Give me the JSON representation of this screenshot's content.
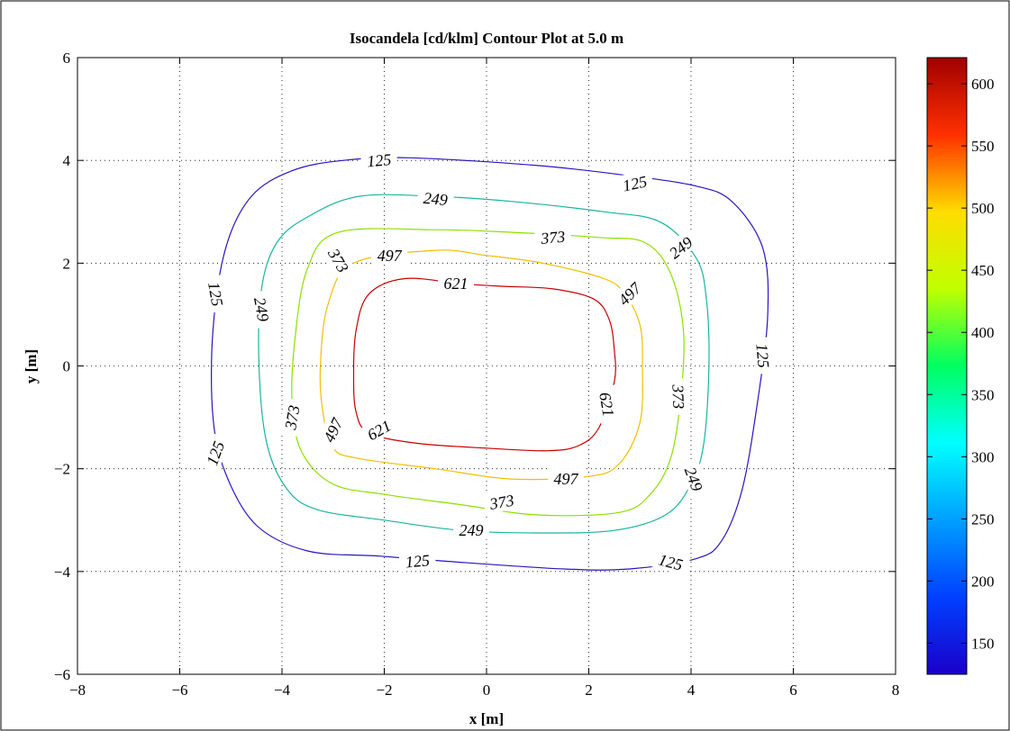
{
  "chart_data": {
    "type": "contour",
    "title": "Isocandela [cd/klm] Contour Plot at 5.0 m",
    "xlabel": "x [m]",
    "ylabel": "y [m]",
    "xlim": [
      -8,
      8
    ],
    "ylim": [
      -6,
      6
    ],
    "xticks": [
      -8,
      -6,
      -4,
      -2,
      0,
      2,
      4,
      6,
      8
    ],
    "yticks": [
      -6,
      -4,
      -2,
      0,
      2,
      4,
      6
    ],
    "xtick_labels": [
      "−8",
      "−6",
      "−4",
      "−2",
      "0",
      "2",
      "4",
      "6",
      "8"
    ],
    "ytick_labels": [
      "−6",
      "−4",
      "−2",
      "0",
      "2",
      "4",
      "6"
    ],
    "grid": true,
    "colorbar": {
      "colormap": "jet",
      "min": 125,
      "max": 621,
      "ticks": [
        150,
        200,
        250,
        300,
        350,
        400,
        450,
        500,
        550,
        600
      ],
      "tick_labels": [
        "150",
        "200",
        "250",
        "300",
        "350",
        "400",
        "450",
        "500",
        "550",
        "600"
      ]
    },
    "contours": [
      {
        "level": 125,
        "label_text": "125",
        "color": "#2a14c0",
        "points": [
          [
            -2.8,
            4
          ],
          [
            -3.8,
            3.8
          ],
          [
            -4.6,
            3.3
          ],
          [
            -5.1,
            2.3
          ],
          [
            -5.35,
            0.7
          ],
          [
            -5.35,
            -1
          ],
          [
            -5.1,
            -2.1
          ],
          [
            -4.5,
            -3.1
          ],
          [
            -3.5,
            -3.6
          ],
          [
            -2.1,
            -3.7
          ],
          [
            -0.8,
            -3.8
          ],
          [
            1.5,
            -3.95
          ],
          [
            2.8,
            -3.95
          ],
          [
            4.1,
            -3.75
          ],
          [
            4.6,
            -3.4
          ],
          [
            5.0,
            -2.4
          ],
          [
            5.3,
            -0.7
          ],
          [
            5.5,
            1.0
          ],
          [
            5.4,
            2.3
          ],
          [
            4.8,
            3.2
          ],
          [
            4.1,
            3.5
          ],
          [
            2.8,
            3.7
          ],
          [
            1.0,
            3.9
          ],
          [
            -1.5,
            4.05
          ],
          [
            -2.8,
            4
          ]
        ],
        "labels": [
          {
            "x": -2.1,
            "y": 4.0,
            "angle": 5
          },
          {
            "x": 2.9,
            "y": 3.55,
            "angle": 12
          },
          {
            "x": 5.4,
            "y": 0.2,
            "angle": -85
          },
          {
            "x": -5.3,
            "y": 1.4,
            "angle": -80
          },
          {
            "x": -5.3,
            "y": -1.7,
            "angle": 70
          },
          {
            "x": -1.35,
            "y": -3.8,
            "angle": 5
          },
          {
            "x": 3.6,
            "y": -3.82,
            "angle": -15
          }
        ]
      },
      {
        "level": 249,
        "label_text": "249",
        "color": "#1ab4a0",
        "points": [
          [
            -3.5,
            2.9
          ],
          [
            -4.1,
            2.4
          ],
          [
            -4.4,
            1.5
          ],
          [
            -4.45,
            0
          ],
          [
            -4.3,
            -1.5
          ],
          [
            -3.9,
            -2.4
          ],
          [
            -3.3,
            -2.8
          ],
          [
            -2,
            -3
          ],
          [
            -0.5,
            -3.2
          ],
          [
            1.0,
            -3.25
          ],
          [
            2.5,
            -3.2
          ],
          [
            3.5,
            -2.9
          ],
          [
            4,
            -2.3
          ],
          [
            4.25,
            -1.5
          ],
          [
            4.35,
            0
          ],
          [
            4.3,
            1.3
          ],
          [
            4.1,
            2.1
          ],
          [
            3.4,
            2.8
          ],
          [
            2.3,
            3.0
          ],
          [
            0.5,
            3.2
          ],
          [
            -1,
            3.3
          ],
          [
            -2.5,
            3.3
          ],
          [
            -3.5,
            2.9
          ]
        ],
        "labels": [
          {
            "x": -1.0,
            "y": 3.25,
            "angle": -5
          },
          {
            "x": 3.8,
            "y": 2.3,
            "angle": 38
          },
          {
            "x": 4.05,
            "y": -2.2,
            "angle": -70
          },
          {
            "x": -4.4,
            "y": 1.1,
            "angle": -80
          },
          {
            "x": -0.3,
            "y": -3.2,
            "angle": 0
          }
        ]
      },
      {
        "level": 373,
        "label_text": "373",
        "color": "#8ce000",
        "points": [
          [
            -2.9,
            2.6
          ],
          [
            -3.5,
            1.9
          ],
          [
            -3.75,
            0.5
          ],
          [
            -3.8,
            -0.8
          ],
          [
            -3.6,
            -1.7
          ],
          [
            -3.0,
            -2.3
          ],
          [
            -2,
            -2.5
          ],
          [
            -0.5,
            -2.7
          ],
          [
            1,
            -2.9
          ],
          [
            2.6,
            -2.85
          ],
          [
            3.2,
            -2.5
          ],
          [
            3.6,
            -1.8
          ],
          [
            3.8,
            -0.6
          ],
          [
            3.85,
            0.7
          ],
          [
            3.6,
            1.8
          ],
          [
            3.1,
            2.4
          ],
          [
            2.2,
            2.5
          ],
          [
            0.5,
            2.6
          ],
          [
            -1,
            2.65
          ],
          [
            -2.9,
            2.6
          ]
        ],
        "labels": [
          {
            "x": -2.9,
            "y": 2.05,
            "angle": -60
          },
          {
            "x": 1.3,
            "y": 2.5,
            "angle": 5
          },
          {
            "x": 3.75,
            "y": -0.6,
            "angle": -88
          },
          {
            "x": -3.8,
            "y": -1.0,
            "angle": 80
          },
          {
            "x": 0.3,
            "y": -2.65,
            "angle": 10
          }
        ]
      },
      {
        "level": 497,
        "label_text": "497",
        "color": "#f0c000",
        "points": [
          [
            -2.6,
            2.0
          ],
          [
            -3.1,
            1.2
          ],
          [
            -3.25,
            0
          ],
          [
            -3.2,
            -0.9
          ],
          [
            -3.0,
            -1.6
          ],
          [
            -2.5,
            -1.8
          ],
          [
            -1,
            -2.0
          ],
          [
            0.5,
            -2.2
          ],
          [
            2.0,
            -2.15
          ],
          [
            2.6,
            -1.9
          ],
          [
            3.0,
            -1.1
          ],
          [
            3.05,
            0
          ],
          [
            3.0,
            0.8
          ],
          [
            2.7,
            1.4
          ],
          [
            2.3,
            1.7
          ],
          [
            1.1,
            2.0
          ],
          [
            0,
            2.15
          ],
          [
            -1,
            2.25
          ],
          [
            -2.6,
            2.0
          ]
        ],
        "labels": [
          {
            "x": -1.9,
            "y": 2.15,
            "angle": 0
          },
          {
            "x": 2.8,
            "y": 1.4,
            "angle": 45
          },
          {
            "x": -3.0,
            "y": -1.25,
            "angle": 65
          },
          {
            "x": 1.55,
            "y": -2.2,
            "angle": 0
          }
        ]
      },
      {
        "level": 621,
        "label_text": "621",
        "color": "#c80000",
        "points": [
          [
            -1.6,
            1.7
          ],
          [
            -2.3,
            1.4
          ],
          [
            -2.55,
            0.7
          ],
          [
            -2.6,
            -0.2
          ],
          [
            -2.55,
            -0.9
          ],
          [
            -2.3,
            -1.3
          ],
          [
            -1.4,
            -1.5
          ],
          [
            0,
            -1.6
          ],
          [
            1.2,
            -1.65
          ],
          [
            1.8,
            -1.55
          ],
          [
            2.2,
            -1.2
          ],
          [
            2.5,
            -0.3
          ],
          [
            2.5,
            0.3
          ],
          [
            2.4,
            0.9
          ],
          [
            2.1,
            1.3
          ],
          [
            1.3,
            1.5
          ],
          [
            0.3,
            1.55
          ],
          [
            -0.5,
            1.6
          ],
          [
            -1.6,
            1.7
          ]
        ],
        "labels": [
          {
            "x": -0.6,
            "y": 1.6,
            "angle": 0
          },
          {
            "x": 2.35,
            "y": -0.75,
            "angle": -80
          },
          {
            "x": -2.1,
            "y": -1.25,
            "angle": 30
          }
        ]
      }
    ]
  }
}
